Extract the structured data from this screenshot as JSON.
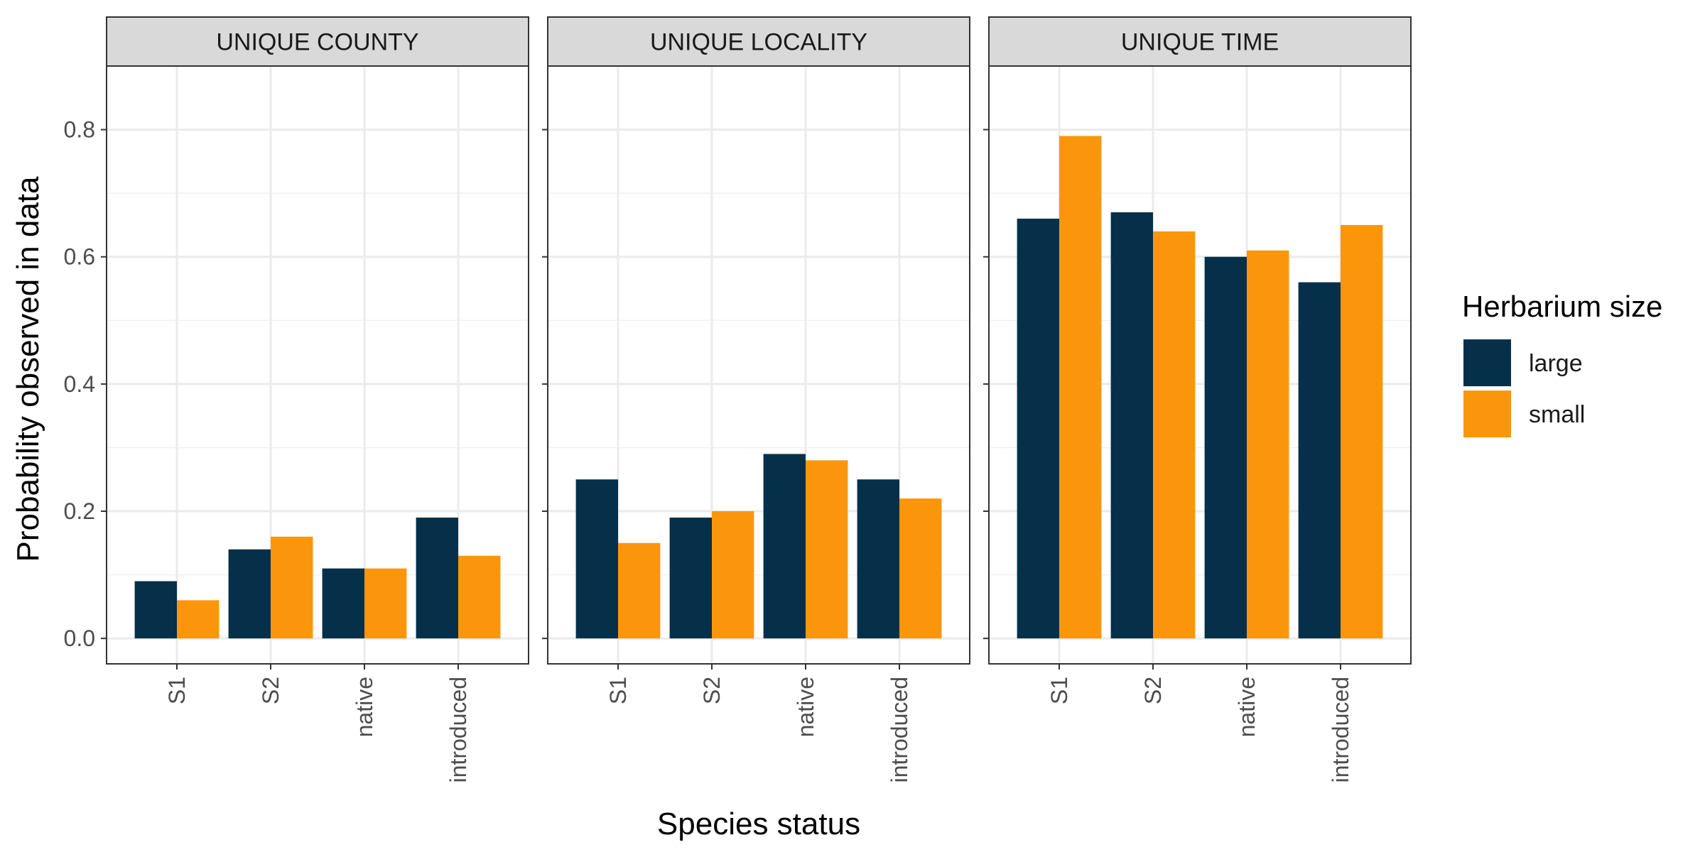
{
  "chart_data": {
    "type": "bar",
    "xlabel": "Species status",
    "ylabel": "Probability observed in data",
    "ylim": [
      -0.04,
      0.9
    ],
    "yticks": [
      "0.0",
      "0.2",
      "0.4",
      "0.6",
      "0.8"
    ],
    "ytick_values": [
      0.0,
      0.2,
      0.4,
      0.6,
      0.8
    ],
    "categories": [
      "S1",
      "S2",
      "native",
      "introduced"
    ],
    "legend": {
      "title": "Herbarium size",
      "position": "right",
      "entries": [
        {
          "name": "large",
          "color": "#06304a"
        },
        {
          "name": "small",
          "color": "#fb960c"
        }
      ]
    },
    "panels": [
      {
        "title": "UNIQUE COUNTY",
        "series": [
          {
            "name": "large",
            "values": [
              0.09,
              0.14,
              0.11,
              0.19
            ]
          },
          {
            "name": "small",
            "values": [
              0.06,
              0.16,
              0.11,
              0.13
            ]
          }
        ]
      },
      {
        "title": "UNIQUE LOCALITY",
        "series": [
          {
            "name": "large",
            "values": [
              0.25,
              0.19,
              0.29,
              0.25
            ]
          },
          {
            "name": "small",
            "values": [
              0.15,
              0.2,
              0.28,
              0.22
            ]
          }
        ]
      },
      {
        "title": "UNIQUE TIME",
        "series": [
          {
            "name": "large",
            "values": [
              0.66,
              0.67,
              0.6,
              0.56
            ]
          },
          {
            "name": "small",
            "values": [
              0.79,
              0.64,
              0.61,
              0.65
            ]
          }
        ]
      }
    ],
    "grid": true
  }
}
